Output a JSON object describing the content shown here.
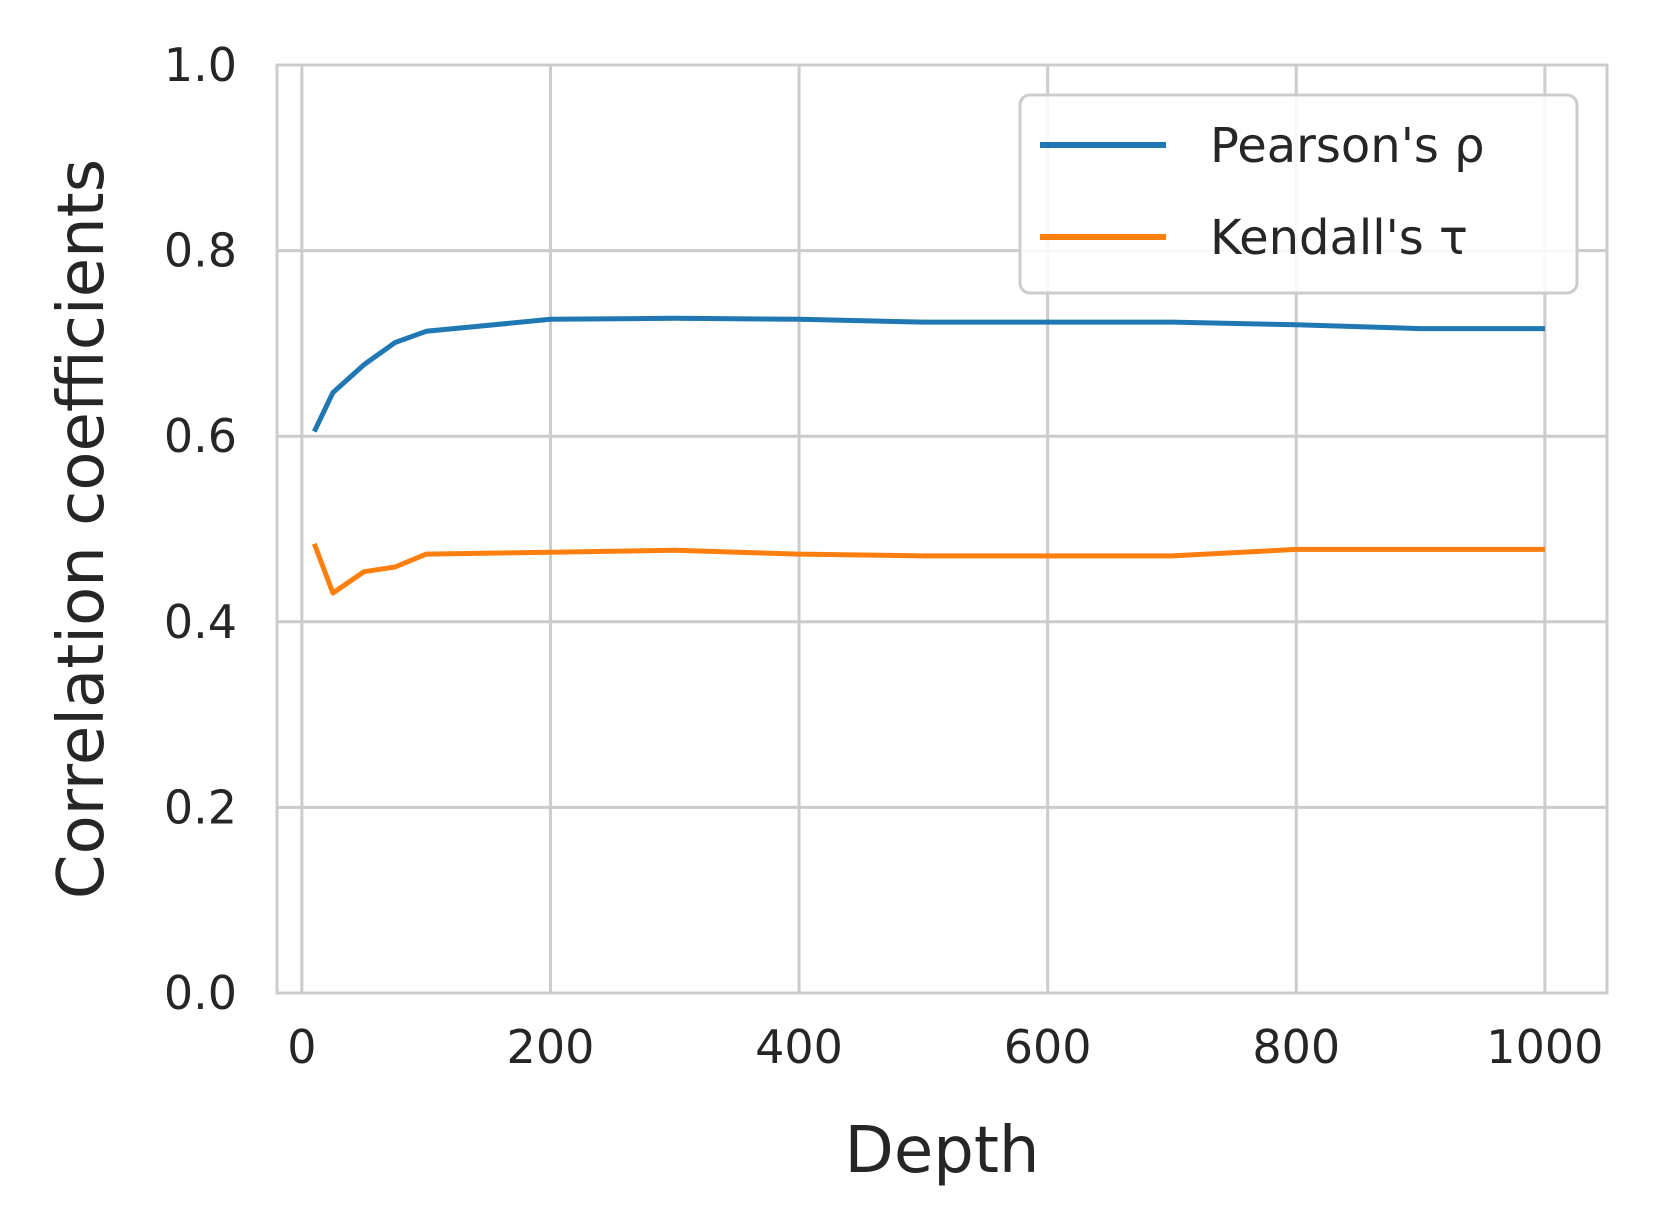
{
  "chart_data": {
    "type": "line",
    "xlabel": "Depth",
    "ylabel": "Correlation coefficients",
    "xlim": [
      -20,
      1050
    ],
    "ylim": [
      0.0,
      1.0
    ],
    "x_ticks": [
      0,
      200,
      400,
      600,
      800,
      1000
    ],
    "y_ticks": [
      0.0,
      0.2,
      0.4,
      0.6,
      0.8,
      1.0
    ],
    "x_tick_labels": [
      "0",
      "200",
      "400",
      "600",
      "800",
      "1000"
    ],
    "y_tick_labels": [
      "0.0",
      "0.2",
      "0.4",
      "0.6",
      "0.8",
      "1.0"
    ],
    "grid": true,
    "legend_position": "top-right",
    "x": [
      10,
      25,
      50,
      75,
      100,
      200,
      300,
      400,
      500,
      600,
      700,
      800,
      900,
      1000
    ],
    "series": [
      {
        "name": "Pearson's ρ",
        "color": "#1f77b4",
        "values": [
          0.605,
          0.647,
          0.677,
          0.701,
          0.713,
          0.726,
          0.727,
          0.726,
          0.723,
          0.723,
          0.723,
          0.72,
          0.716,
          0.716
        ]
      },
      {
        "name": "Kendall's τ",
        "color": "#ff7f0e",
        "values": [
          0.484,
          0.431,
          0.454,
          0.459,
          0.473,
          0.475,
          0.477,
          0.473,
          0.471,
          0.471,
          0.471,
          0.478,
          0.478,
          0.478
        ]
      }
    ]
  }
}
